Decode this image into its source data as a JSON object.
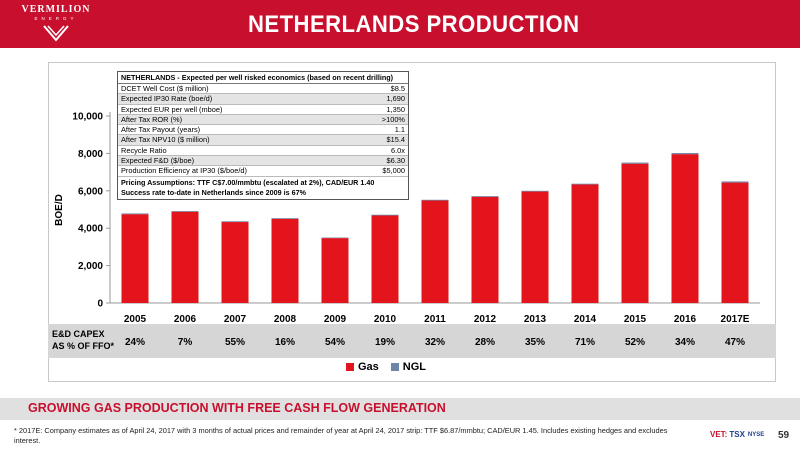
{
  "brand": {
    "name": "VERMILION",
    "sub": "ENERGY"
  },
  "page_title": "NETHERLANDS PRODUCTION",
  "table": {
    "title": "NETHERLANDS - Expected per well risked economics (based on recent drilling)",
    "rows": [
      {
        "label": "DCET Well Cost ($ million)",
        "value": "$8.5"
      },
      {
        "label": "Expected IP30 Rate (boe/d)",
        "value": "1,690"
      },
      {
        "label": "Expected EUR per well (mboe)",
        "value": "1,350"
      },
      {
        "label": "After Tax ROR (%)",
        "value": ">100%"
      },
      {
        "label": "After Tax Payout (years)",
        "value": "1.1"
      },
      {
        "label": "After Tax NPV10 ($ million)",
        "value": "$15.4"
      },
      {
        "label": "Recycle Ratio",
        "value": "6.0x"
      },
      {
        "label": "Expected F&D ($/boe)",
        "value": "$6.30"
      },
      {
        "label": "Production Efficiency at IP30 ($/boe/d)",
        "value": "$5,000"
      }
    ],
    "footer": [
      "Pricing Assumptions: TTF C$7.00/mmbtu (escalated at 2%), CAD/EUR 1.40",
      "Success rate to-date in Netherlands since 2009 is 67%"
    ]
  },
  "capex": {
    "label_line1": "E&D CAPEX",
    "label_line2": "AS % OF FFO*",
    "values": [
      "24%",
      "7%",
      "55%",
      "16%",
      "54%",
      "19%",
      "32%",
      "28%",
      "35%",
      "71%",
      "52%",
      "34%",
      "47%"
    ]
  },
  "chart_data": {
    "type": "bar",
    "stacked": true,
    "categories": [
      "2005",
      "2006",
      "2007",
      "2008",
      "2009",
      "2010",
      "2011",
      "2012",
      "2013",
      "2014",
      "2015",
      "2016",
      "2017E"
    ],
    "series": [
      {
        "name": "Gas",
        "color": "#e3141b",
        "values": [
          4750,
          4880,
          4330,
          4500,
          3470,
          4680,
          5480,
          5680,
          5960,
          6340,
          7450,
          7960,
          6440
        ]
      },
      {
        "name": "NGL",
        "color": "#6f86a6",
        "values": [
          40,
          40,
          40,
          40,
          30,
          40,
          40,
          40,
          40,
          40,
          60,
          60,
          60
        ]
      }
    ],
    "ylabel": "BOE/D",
    "ylim": [
      0,
      10000
    ],
    "yticks": [
      "0",
      "2,000",
      "4,000",
      "6,000",
      "8,000",
      "10,000"
    ],
    "ytick_values": [
      0,
      2000,
      4000,
      6000,
      8000,
      10000
    ],
    "grid": false,
    "legend": "bottom-center"
  },
  "banner": "GROWING GAS PRODUCTION WITH FREE CASH FLOW GENERATION",
  "footnote": "* 2017E: Company estimates as of April 24, 2017 with 3 months of actual prices and remainder of year at April 24, 2017 strip: TTF $6.87/mmbtu; CAD/EUR 1.45.  Includes existing hedges and excludes interest.",
  "ticker": {
    "vet": "VET:",
    "tsx": "TSX",
    "nyse": "NYSE"
  },
  "page_number": "59",
  "colors": {
    "brand_red": "#c8102e",
    "gas": "#e3141b",
    "ngl": "#6f86a6"
  }
}
